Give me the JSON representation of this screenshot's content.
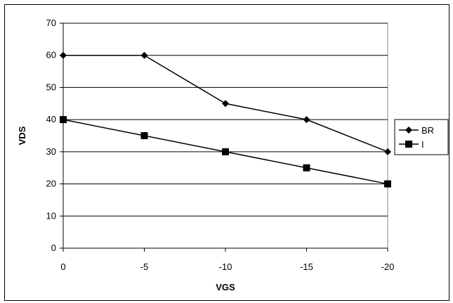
{
  "chart_data": {
    "type": "line",
    "title": "",
    "xlabel": "VGS",
    "ylabel": "VDS",
    "categories": [
      "0",
      "-5",
      "-10",
      "-15",
      "-20"
    ],
    "ylim": [
      0,
      70
    ],
    "yticks": [
      0,
      10,
      20,
      30,
      40,
      50,
      60,
      70
    ],
    "grid": true,
    "legend": "right",
    "series": [
      {
        "name": "BR",
        "marker": "diamond",
        "color": "#000000",
        "values": [
          60,
          60,
          45,
          40,
          30
        ]
      },
      {
        "name": "I",
        "marker": "square",
        "color": "#000000",
        "values": [
          40,
          35,
          30,
          25,
          20
        ]
      }
    ]
  }
}
